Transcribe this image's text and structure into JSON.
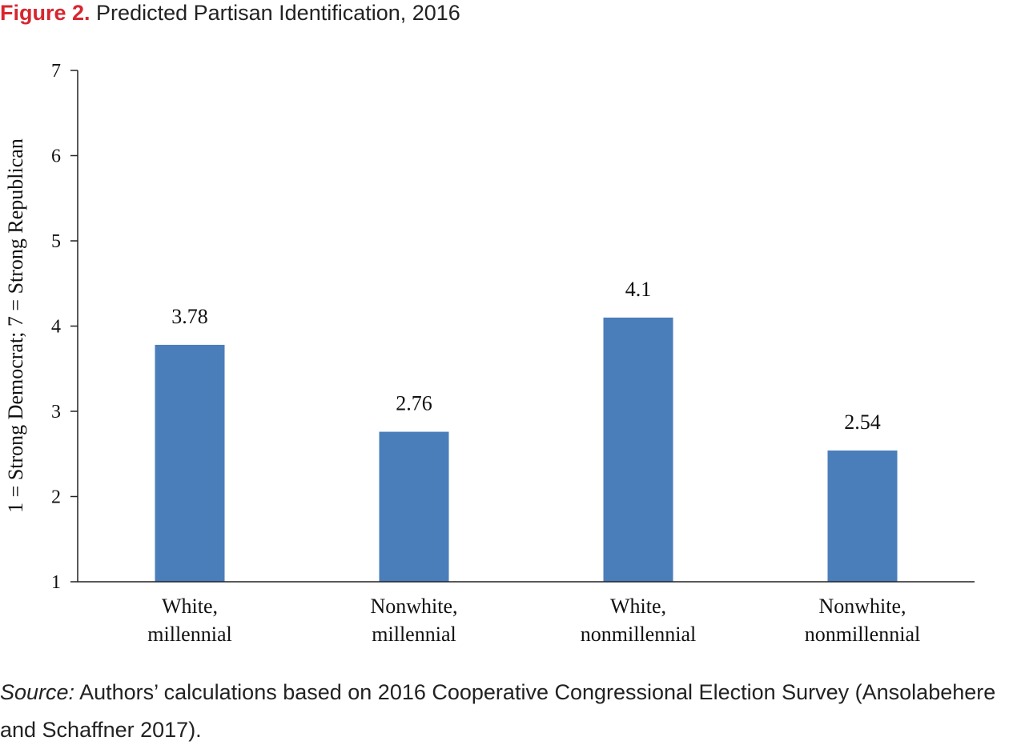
{
  "figure": {
    "label": "Figure 2.",
    "title": "Predicted Partisan Identification, 2016"
  },
  "source": {
    "label": "Source:",
    "text": "Authors’ calculations based on 2016 Cooperative Congressional Election Survey (Ansolabehere and Schaffner 2017)."
  },
  "colors": {
    "bar": "#4a7ebb",
    "accent": "#d7262f",
    "axis": "#222222"
  },
  "chart_data": {
    "type": "bar",
    "title": "Predicted Partisan Identification, 2016",
    "xlabel": "",
    "ylabel": "1 = Strong Democrat; 7 = Strong Republican",
    "ylim": [
      1,
      7
    ],
    "yticks": [
      1,
      2,
      3,
      4,
      5,
      6,
      7
    ],
    "categories": [
      [
        "White,",
        "millennial"
      ],
      [
        "Nonwhite,",
        "millennial"
      ],
      [
        "White,",
        "nonmillennial"
      ],
      [
        "Nonwhite,",
        "nonmillennial"
      ]
    ],
    "values": [
      3.78,
      2.76,
      4.1,
      2.54
    ],
    "value_labels": [
      "3.78",
      "2.76",
      "4.1",
      "2.54"
    ],
    "grid": false,
    "legend": "none"
  }
}
